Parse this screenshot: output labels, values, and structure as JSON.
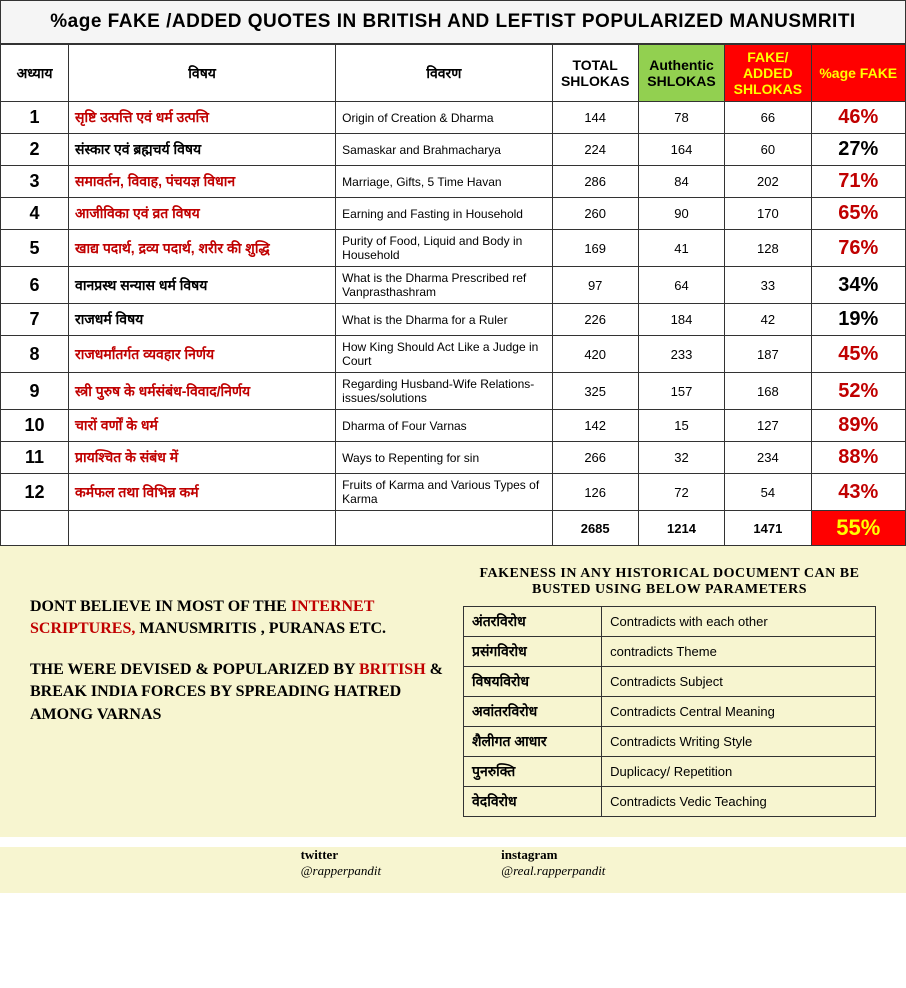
{
  "title": "%age FAKE /ADDED QUOTES IN BRITISH AND LEFTIST POPULARIZED MANUSMRITI",
  "headers": {
    "adhyay": "अध्याय",
    "vishay": "विषय",
    "vivaran": "विवरण",
    "total": "TOTAL SHLOKAS",
    "auth": "Authentic SHLOKAS",
    "fake": "FAKE/ ADDED SHLOKAS",
    "pct": "%age FAKE"
  },
  "rows": [
    {
      "n": "1",
      "topic": "सृष्टि उत्पत्ति एवं धर्म उत्पत्ति",
      "desc": "Origin of Creation & Dharma",
      "t": "144",
      "a": "78",
      "f": "66",
      "p": "46%",
      "tc": "red",
      "pc": "red"
    },
    {
      "n": "2",
      "topic": "संस्कार एवं ब्रह्मचर्य विषय",
      "desc": "Samaskar and Brahmacharya",
      "t": "224",
      "a": "164",
      "f": "60",
      "p": "27%",
      "tc": "black",
      "pc": "black"
    },
    {
      "n": "3",
      "topic": "समावर्तन, विवाह, पंचयज्ञ विधान",
      "desc": "Marriage, Gifts, 5 Time Havan",
      "t": "286",
      "a": "84",
      "f": "202",
      "p": "71%",
      "tc": "red",
      "pc": "red"
    },
    {
      "n": "4",
      "topic": "आजीविका एवं व्रत विषय",
      "desc": "Earning and Fasting in Household",
      "t": "260",
      "a": "90",
      "f": "170",
      "p": "65%",
      "tc": "red",
      "pc": "red"
    },
    {
      "n": "5",
      "topic": "खाद्य पदार्थ, द्रव्य पदार्थ, शरीर की शुद्धि",
      "desc": "Purity of Food, Liquid and Body in Household",
      "t": "169",
      "a": "41",
      "f": "128",
      "p": "76%",
      "tc": "red",
      "pc": "red"
    },
    {
      "n": "6",
      "topic": "वानप्रस्थ सन्यास धर्म विषय",
      "desc": "What is the Dharma Prescribed ref  Vanprasthashram",
      "t": "97",
      "a": "64",
      "f": "33",
      "p": "34%",
      "tc": "black",
      "pc": "black"
    },
    {
      "n": "7",
      "topic": "राजधर्म विषय",
      "desc": "What is the Dharma for a Ruler",
      "t": "226",
      "a": "184",
      "f": "42",
      "p": "19%",
      "tc": "black",
      "pc": "black"
    },
    {
      "n": "8",
      "topic": "राजधर्मांतर्गत व्यवहार निर्णय",
      "desc": "How King Should Act Like a Judge in Court",
      "t": "420",
      "a": "233",
      "f": "187",
      "p": "45%",
      "tc": "red",
      "pc": "red"
    },
    {
      "n": "9",
      "topic": "स्त्री पुरुष के धर्मसंबंध-विवाद/निर्णय",
      "desc": "Regarding Husband-Wife Relations- issues/solutions",
      "t": "325",
      "a": "157",
      "f": "168",
      "p": "52%",
      "tc": "red",
      "pc": "red"
    },
    {
      "n": "10",
      "topic": "चारों वर्णों के धर्म",
      "desc": "Dharma of Four Varnas",
      "t": "142",
      "a": "15",
      "f": "127",
      "p": "89%",
      "tc": "red",
      "pc": "red"
    },
    {
      "n": "11",
      "topic": "प्रायश्चित के संबंध में",
      "desc": "Ways to Repenting for sin",
      "t": "266",
      "a": "32",
      "f": "234",
      "p": "88%",
      "tc": "red",
      "pc": "red"
    },
    {
      "n": "12",
      "topic": "कर्मफल तथा विभिन्न कर्म",
      "desc": "Fruits of Karma and Various Types of Karma",
      "t": "126",
      "a": "72",
      "f": "54",
      "p": "43%",
      "tc": "red",
      "pc": "red"
    }
  ],
  "totals": {
    "t": "2685",
    "a": "1214",
    "f": "1471",
    "p": "55%"
  },
  "note": {
    "l1a": "DONT BELIEVE IN MOST OF THE ",
    "l1b": "INTERNET SCRIPTURES,",
    "l1c": " MANUSMRITIS , PURANAS ETC.",
    "l2a": "THE WERE DEVISED & POPULARIZED BY ",
    "l2b": "BRITISH",
    "l2c": " & BREAK INDIA FORCES BY SPREADING HATRED AMONG VARNAS"
  },
  "param_title": "FAKENESS IN ANY HISTORICAL DOCUMENT CAN BE BUSTED USING BELOW  PARAMETERS",
  "params": [
    {
      "hi": "अंतरविरोध",
      "en": "Contradicts with each other"
    },
    {
      "hi": "प्रसंगविरोध",
      "en": "contradicts Theme"
    },
    {
      "hi": "विषयविरोध",
      "en": "Contradicts Subject"
    },
    {
      "hi": "अवांतरविरोध",
      "en": "Contradicts Central Meaning"
    },
    {
      "hi": "शैलीगत आधार",
      "en": "Contradicts Writing Style"
    },
    {
      "hi": "पुनरुक्ति",
      "en": "Duplicacy/ Repetition"
    },
    {
      "hi": "वेदविरोध",
      "en": "Contradicts Vedic Teaching"
    }
  ],
  "socials": {
    "twitter_label": "twitter",
    "twitter_handle": "@rapperpandit",
    "insta_label": "instagram",
    "insta_handle": "@real.rapperpandit"
  }
}
